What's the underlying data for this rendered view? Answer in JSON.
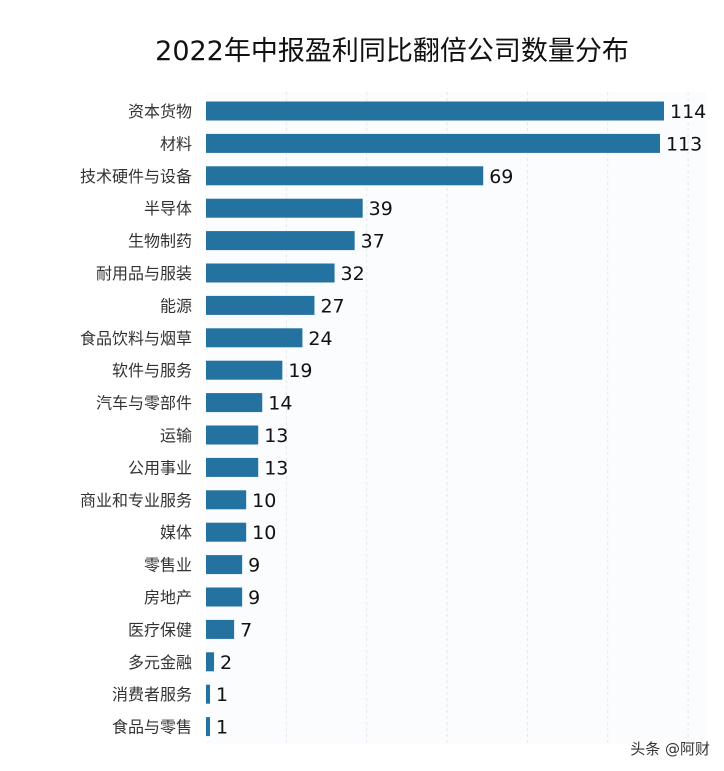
{
  "chart_data": {
    "type": "bar",
    "orientation": "horizontal",
    "title": "2022年中报盈利同比翻倍公司数量分布",
    "xlabel": "",
    "ylabel": "",
    "categories": [
      "资本货物",
      "材料",
      "技术硬件与设备",
      "半导体",
      "生物制药",
      "耐用品与服装",
      "能源",
      "食品饮料与烟草",
      "软件与服务",
      "汽车与零部件",
      "运输",
      "公用事业",
      "商业和专业服务",
      "媒体",
      "零售业",
      "房地产",
      "医疗保健",
      "多元金融",
      "消费者服务",
      "食品与零售"
    ],
    "series": [
      {
        "values": [
          114,
          113,
          69,
          39,
          37,
          32,
          27,
          24,
          19,
          14,
          13,
          13,
          10,
          10,
          9,
          9,
          7,
          2,
          1,
          1
        ]
      }
    ],
    "xlim": [
      0,
      120
    ],
    "grid": "vertical dashed",
    "bar_color": "#24729f",
    "data_labels": true
  },
  "watermark": "头条 @阿财"
}
